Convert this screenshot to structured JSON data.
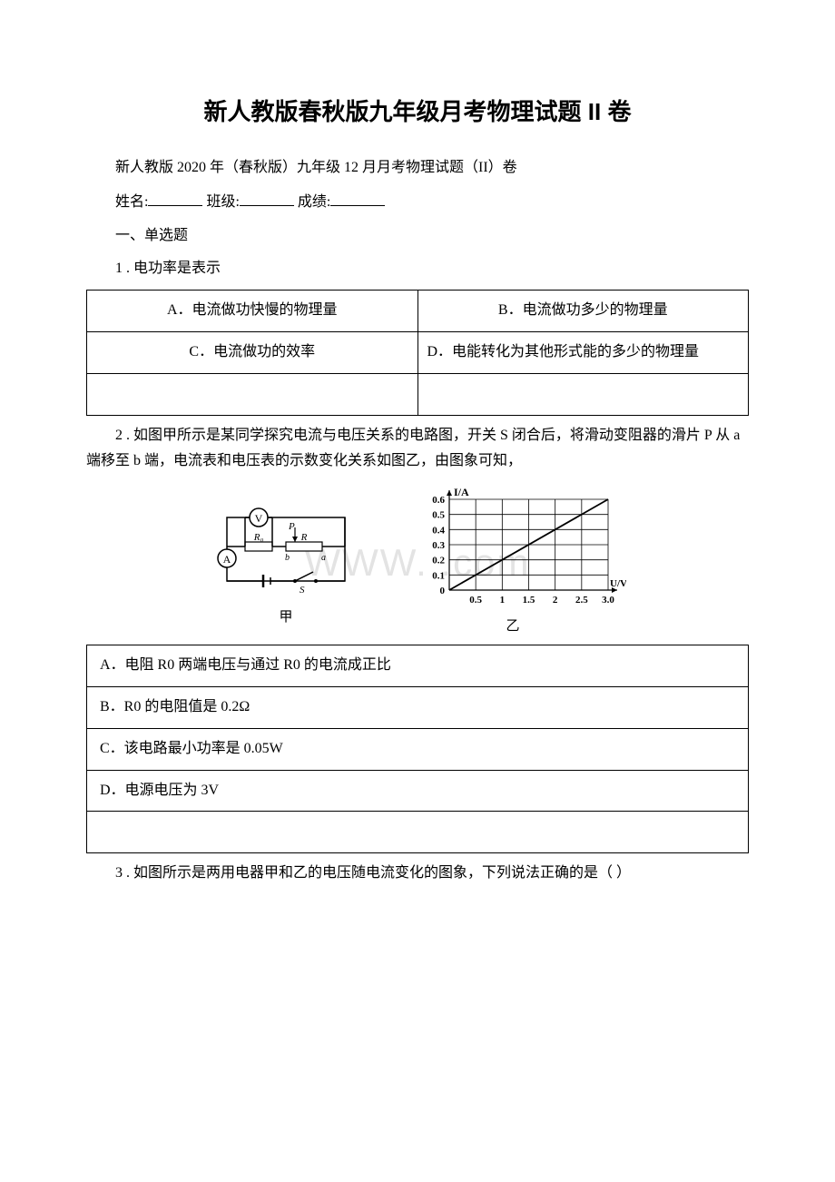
{
  "title": "新人教版春秋版九年级月考物理试题 II 卷",
  "subtitle": "新人教版 2020 年（春秋版）九年级 12 月月考物理试题（II）卷",
  "form": {
    "name_label": "姓名:",
    "class_label": "班级:",
    "score_label": "成绩:"
  },
  "section1": "一、单选题",
  "q1": {
    "stem": "1 . 电功率是表示",
    "a": "A．电流做功快慢的物理量",
    "b": "B．电流做功多少的物理量",
    "c": "C．电流做功的效率",
    "d": "D．电能转化为其他形式能的多少的物理量"
  },
  "q2": {
    "stem": "2 . 如图甲所示是某同学探究电流与电压关系的电路图，开关 S 闭合后，将滑动变阻器的滑片 P 从 a 端移至 b 端，电流表和电压表的示数变化关系如图乙，由图象可知，",
    "a": "A．电阻 R0 两端电压与通过 R0 的电流成正比",
    "b": "B．R0 的电阻值是 0.2Ω",
    "c": "C．该电路最小功率是 0.05W",
    "d": "D．电源电压为 3V",
    "fig1_label": "甲",
    "fig2_label": "乙",
    "circuit": {
      "labels": {
        "V": "V",
        "A": "A",
        "R0": "R₀",
        "R": "R",
        "P": "P",
        "S": "S",
        "a": "a",
        "b": "b"
      }
    },
    "graph": {
      "ylabel": "I/A",
      "xlabel": "U/V",
      "yticks": [
        "0",
        "0.1",
        "0.2",
        "0.3",
        "0.4",
        "0.5",
        "0.6"
      ],
      "xticks": [
        "0.5",
        "1",
        "1.5",
        "2",
        "2.5",
        "3.0"
      ],
      "line_start": [
        0,
        0
      ],
      "line_end": [
        3.0,
        0.6
      ],
      "grid_color": "#000000",
      "line_color": "#000000"
    }
  },
  "q3": {
    "stem": "3 . 如图所示是两用电器甲和乙的电压随电流变化的图象，下列说法正确的是（ ）"
  },
  "watermark": "WWW.            .com"
}
